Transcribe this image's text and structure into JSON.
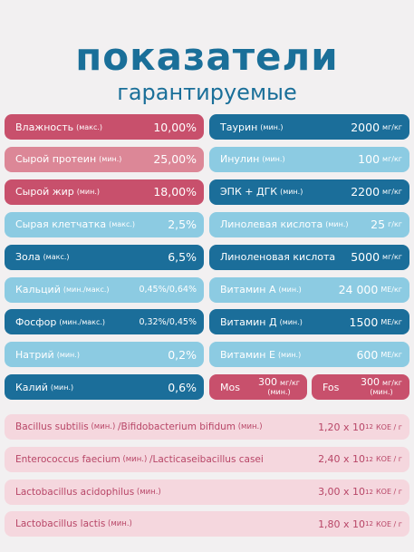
{
  "header": {
    "title": "показатели",
    "subtitle": "гарантируемые"
  },
  "left": [
    {
      "label": "Влажность",
      "qualifier": "(макс.)",
      "value": "10,00%",
      "color": "#c8506c"
    },
    {
      "label": "Сырой протеин",
      "qualifier": "(мин.)",
      "value": "25,00%",
      "color": "#dc8797"
    },
    {
      "label": "Сырой жир",
      "qualifier": "(мин.)",
      "value": "18,00%",
      "color": "#c8506c"
    },
    {
      "label": "Сырая клетчатка",
      "qualifier": "(макс.)",
      "value": "2,5%",
      "color": "#8ccbe2"
    },
    {
      "label": "Зола",
      "qualifier": "(макс.)",
      "value": "6,5%",
      "color": "#1b6e9a"
    },
    {
      "label": "Кальций",
      "qualifier": "(мин./макс.)",
      "value": "0,45%/0,64%",
      "color": "#8ccbe2"
    },
    {
      "label": "Фосфор",
      "qualifier": "(мин./макс.)",
      "value": "0,32%/0,45%",
      "color": "#1b6e9a"
    },
    {
      "label": "Натрий",
      "qualifier": "(мин.)",
      "value": "0,2%",
      "color": "#8ccbe2"
    },
    {
      "label": "Калий",
      "qualifier": "(мин.)",
      "value": "0,6%",
      "color": "#1b6e9a"
    }
  ],
  "right": [
    {
      "label": "Таурин",
      "qualifier": "(мин.)",
      "value": "2000",
      "unit": "мг/кг",
      "color": "#1b6e9a"
    },
    {
      "label": "Инулин",
      "qualifier": "(мин.)",
      "value": "100",
      "unit": "мг/кг",
      "color": "#8ccbe2"
    },
    {
      "label": "ЭПК + ДГК",
      "qualifier": "(мин.)",
      "value": "2200",
      "unit": "мг/кг",
      "color": "#1b6e9a"
    },
    {
      "label": "Линолевая кислота",
      "qualifier": "(мин.)",
      "value": "25",
      "unit": "г/кг",
      "color": "#8ccbe2"
    },
    {
      "label": "Линоленовая кислота",
      "value": "5000",
      "unit": "мг/кг",
      "color": "#1b6e9a"
    },
    {
      "label": "Витамин А",
      "qualifier": "(мин.)",
      "value": "24 000",
      "unit": "МЕ/кг",
      "color": "#8ccbe2"
    },
    {
      "label": "Витамин Д",
      "qualifier": "(мин.)",
      "value": "1500",
      "unit": "МЕ/кг",
      "color": "#1b6e9a"
    },
    {
      "label": "Витамин Е",
      "qualifier": "(мин.)",
      "value": "600",
      "unit": "МЕ/кг",
      "color": "#8ccbe2"
    }
  ],
  "split": [
    {
      "label": "Mos",
      "value": "300",
      "unit": "мг/кг",
      "qualifier": "(мин.)",
      "color": "#c8506c"
    },
    {
      "label": "Fos",
      "value": "300",
      "unit": "мг/кг",
      "qualifier": "(мин.)",
      "color": "#c8506c"
    }
  ],
  "probiotics": [
    {
      "parts": [
        {
          "text": "Bacillus subtilis",
          "bold": true
        },
        {
          "text": " (мин.) ",
          "bold": false
        },
        {
          "text": "/Bifidobacterium bifidum",
          "bold": true
        },
        {
          "text": " (мин.)",
          "bold": false
        }
      ],
      "value": "1,20 x 10",
      "exponent": "12",
      "unit": "КОЕ / г"
    },
    {
      "parts": [
        {
          "text": "Enterococcus faecium",
          "bold": true
        },
        {
          "text": " (мин.) ",
          "bold": false
        },
        {
          "text": "/Lacticaseibacillus casei",
          "bold": true
        }
      ],
      "value": "2,40 x 10",
      "exponent": "12",
      "unit": "КОЕ / г"
    },
    {
      "parts": [
        {
          "text": "Lactobacillus acidophilus",
          "bold": true
        },
        {
          "text": " (мин.)",
          "bold": false
        }
      ],
      "value": "3,00 x 10",
      "exponent": "12",
      "unit": "КОЕ / г"
    },
    {
      "parts": [
        {
          "text": "Lactobacillus lactis",
          "bold": true
        },
        {
          "text": " (мин.)",
          "bold": false
        }
      ],
      "value": "1,80 x 10",
      "exponent": "12",
      "unit": "КОЕ / г"
    }
  ]
}
